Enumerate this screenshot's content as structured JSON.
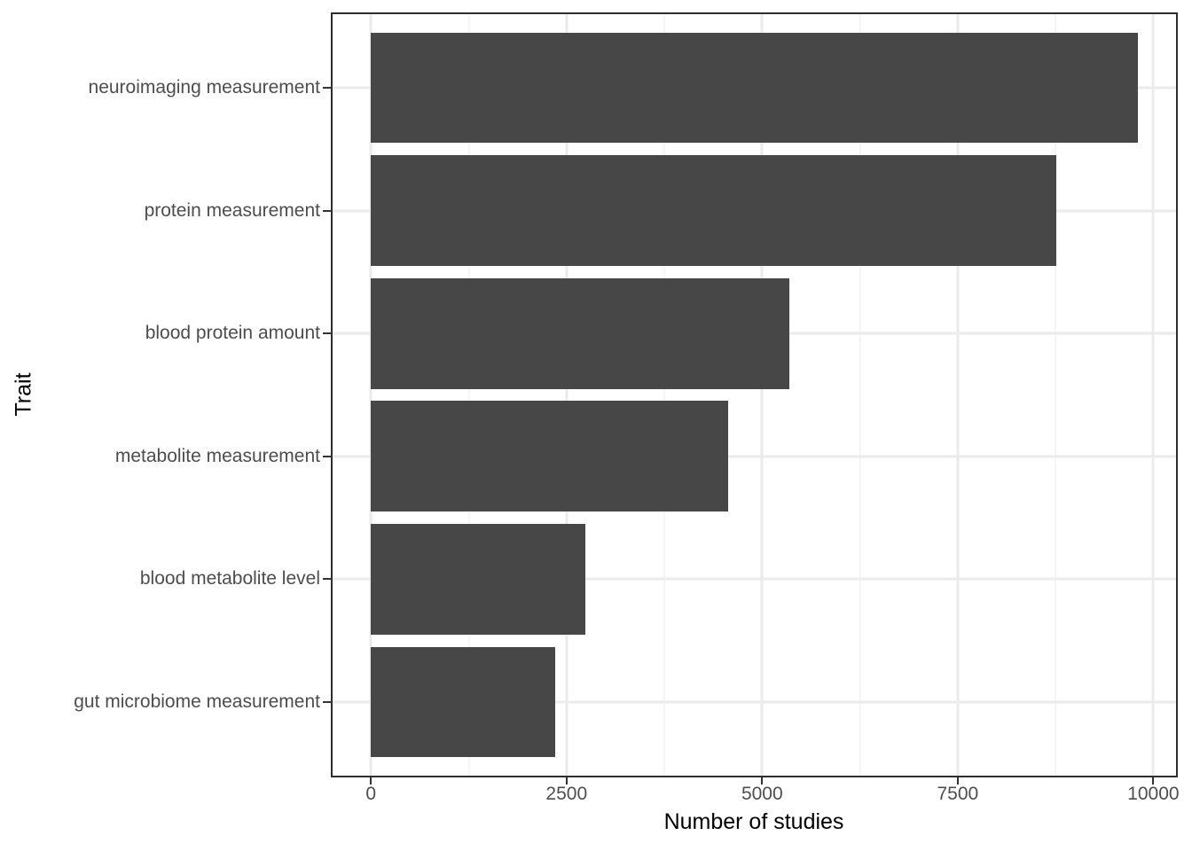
{
  "chart_data": {
    "type": "bar",
    "orientation": "horizontal",
    "title": "",
    "xlabel": "Number of studies",
    "ylabel": "Trait",
    "categories": [
      "neuroimaging measurement",
      "protein measurement",
      "blood protein amount",
      "metabolite measurement",
      "blood metabolite level",
      "gut microbiome measurement"
    ],
    "values": [
      9800,
      8760,
      5350,
      4570,
      2740,
      2350
    ],
    "x_ticks": [
      0,
      2500,
      5000,
      7500,
      10000
    ],
    "x_tick_labels": [
      "0",
      "2500",
      "5000",
      "7500",
      "10000"
    ],
    "x_minor_ticks": [
      1250,
      3750,
      6250,
      8750
    ],
    "xlim": [
      0,
      10000
    ],
    "grid": "vertical major+minor, horizontal major at each category",
    "legend": "none",
    "bar_width_fraction": 0.9,
    "colors": {
      "bar": "#474747",
      "panel_background": "#ffffff",
      "panel_border": "#2e2e2e",
      "grid_major": "#ebebeb",
      "grid_minor": "#f5f5f5",
      "tick_mark": "#333333",
      "axis_text": "#4d4d4d",
      "axis_title": "#000000",
      "figure_background": "#ffffff"
    }
  }
}
